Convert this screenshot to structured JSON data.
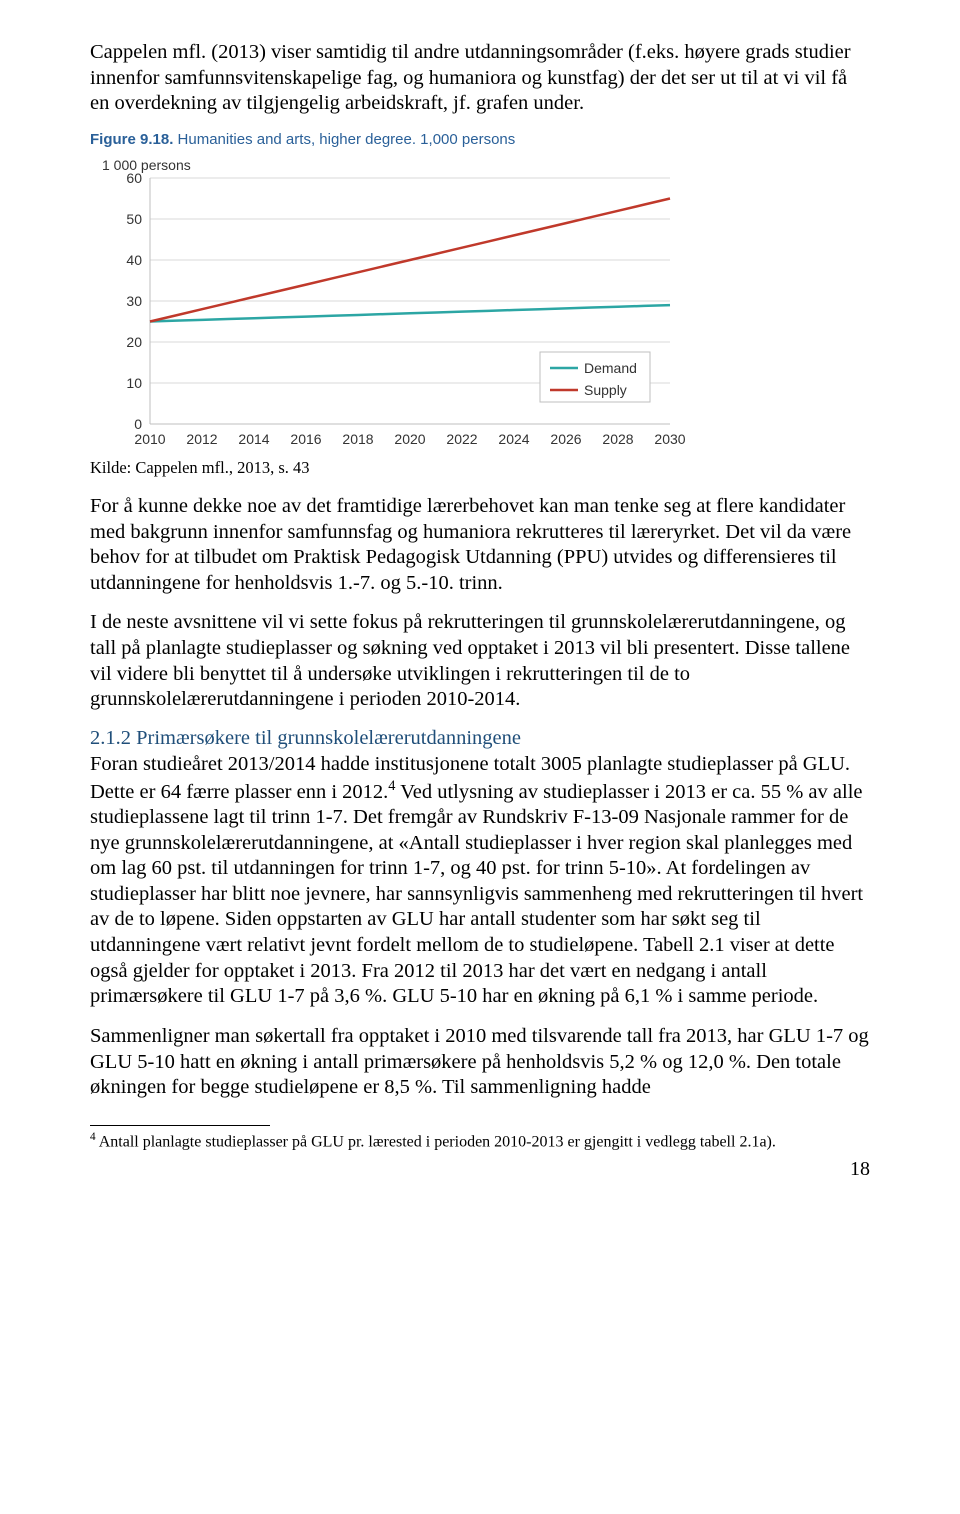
{
  "paragraphs": {
    "p1": "Cappelen mfl. (2013) viser samtidig til andre utdanningsområder (f.eks. høyere grads studier innenfor samfunnsvitenskapelige fag, og humaniora og kunstfag) der det ser ut til at vi vil få en overdekning av tilgjengelig arbeidskraft, jf. grafen under.",
    "caption": "Kilde: Cappelen mfl., 2013, s. 43",
    "p2": "For å kunne dekke noe av det framtidige lærerbehovet kan man tenke seg at flere kandidater med bakgrunn innenfor samfunnsfag og humaniora rekrutteres til læreryrket. Det vil da være behov for at tilbudet om Praktisk Pedagogisk Utdanning (PPU) utvides og differensieres til utdanningene for henholdsvis 1.-7. og 5.-10. trinn.",
    "p3": "I de neste avsnittene vil vi sette fokus på rekrutteringen til grunnskolelærerutdanningene, og tall på planlagte studieplasser og søkning ved opptaket i 2013 vil bli presentert. Disse tallene vil videre bli benyttet til å undersøke utviklingen i rekrutteringen til de to grunnskolelærerutdanningene i perioden 2010-2014.",
    "subhead": "2.1.2 Primærsøkere til grunnskolelærerutdanningene",
    "p4a": "Foran studieåret 2013/2014 hadde institusjonene totalt 3005 planlagte studieplasser på GLU. Dette er 64 færre plasser enn i 2012.",
    "p4_sup": "4",
    "p4b": " Ved utlysning av studieplasser i 2013 er ca. 55 % av alle studieplassene lagt til trinn 1-7. Det fremgår av Rundskriv F-13-09 Nasjonale rammer for de nye grunnskolelærerutdanningene, at «Antall studieplasser i hver region skal planlegges med om lag 60 pst. til utdanningen for trinn 1-7, og 40 pst. for trinn 5-10». At fordelingen av studieplasser har blitt noe jevnere, har sannsynligvis sammenheng med rekrutteringen til hvert av de to løpene. Siden oppstarten av GLU har antall studenter som har søkt seg til utdanningene vært relativt jevnt fordelt mellom de to studieløpene. Tabell 2.1 viser at dette også gjelder for opptaket i 2013. Fra 2012 til 2013 har det vært en nedgang i antall primærsøkere til GLU 1-7 på 3,6 %. GLU 5-10 har en økning på 6,1 % i samme periode.",
    "p5": "Sammenligner man søkertall fra opptaket i 2010 med tilsvarende tall fra 2013, har GLU 1-7 og GLU 5-10 hatt en økning i antall primærsøkere på henholdsvis 5,2 % og 12,0 %. Den totale økningen for begge studieløpene er 8,5 %. Til sammenligning hadde"
  },
  "footnote": {
    "marker": "4",
    "text": " Antall planlagte studieplasser på GLU pr. lærested i perioden 2010-2013 er gjengitt i vedlegg tabell 2.1a)."
  },
  "pagenum": "18",
  "chart": {
    "figure_label": "Figure 9.18.",
    "figure_title": " Humanities and arts, higher degree. 1,000 persons",
    "y_title": "1 000 persons",
    "type": "line",
    "background_color": "#ffffff",
    "grid_color": "#d9d9d9",
    "axis_color": "#bfbfbf",
    "x_categories": [
      "2010",
      "2012",
      "2014",
      "2016",
      "2018",
      "2020",
      "2022",
      "2024",
      "2026",
      "2028",
      "2030"
    ],
    "y_ticks": [
      0,
      10,
      20,
      30,
      40,
      50,
      60
    ],
    "ylim": [
      0,
      60
    ],
    "line_width": 2.5,
    "legend": {
      "border_color": "#bfbfbf",
      "bg": "#ffffff",
      "items": [
        {
          "label": "Demand",
          "color": "#2ca6a4"
        },
        {
          "label": "Supply",
          "color": "#c0392b"
        }
      ]
    },
    "series": [
      {
        "name": "Demand",
        "color": "#2ca6a4",
        "values": [
          25,
          25.2,
          25.4,
          25.6,
          25.8,
          26,
          26.2,
          26.4,
          26.6,
          26.8,
          27,
          27.2,
          27.4,
          27.6,
          27.8,
          28,
          28.2,
          28.4,
          28.6,
          28.8,
          29
        ]
      },
      {
        "name": "Supply",
        "color": "#c0392b",
        "values": [
          25,
          26.5,
          28,
          29.5,
          31,
          32.5,
          34,
          35.5,
          37,
          38.5,
          40,
          41.5,
          43,
          44.5,
          46,
          47.5,
          49,
          50.5,
          52,
          53.5,
          55
        ]
      }
    ]
  }
}
